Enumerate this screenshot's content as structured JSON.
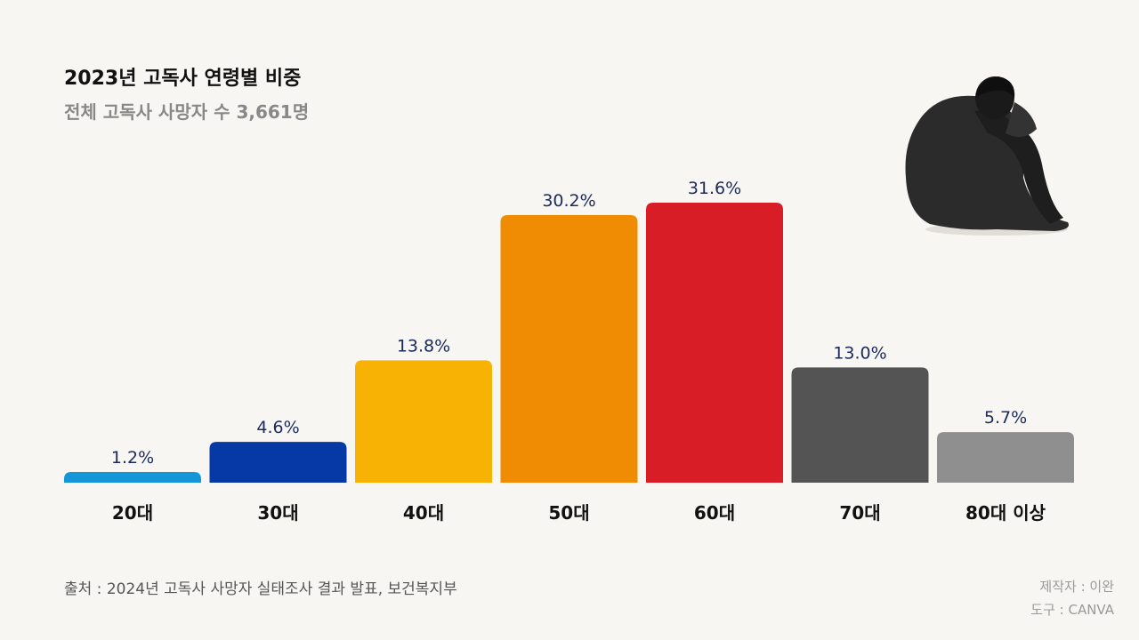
{
  "header": {
    "title": "2023년 고독사 연령별 비중",
    "subtitle": "전체 고독사 사망자 수 3,661명"
  },
  "footer": {
    "source": "출처 :  2024년 고독사 사망자 실태조사 결과 발표, 보건복지부",
    "author": "제작자 : 이완",
    "tool": "도구 : CANVA"
  },
  "chart_data": {
    "type": "bar",
    "title": "2023년 고독사 연령별 비중",
    "subtitle": "전체 고독사 사망자 수 3,661명",
    "categories": [
      "20대",
      "30대",
      "40대",
      "50대",
      "60대",
      "70대",
      "80대 이상"
    ],
    "values": [
      1.2,
      4.6,
      13.8,
      30.2,
      31.6,
      13.0,
      5.7
    ],
    "value_labels": [
      "1.2%",
      "4.6%",
      "13.8%",
      "30.2%",
      "31.6%",
      "13.0%",
      "5.7%"
    ],
    "colors": [
      "#1596d8",
      "#0638a6",
      "#f7b204",
      "#f08c04",
      "#d91d27",
      "#545454",
      "#8f8f8f"
    ],
    "value_label_color": "#1b2a5c",
    "ylim": [
      0,
      31.6
    ],
    "grid": false,
    "legend": "none"
  }
}
